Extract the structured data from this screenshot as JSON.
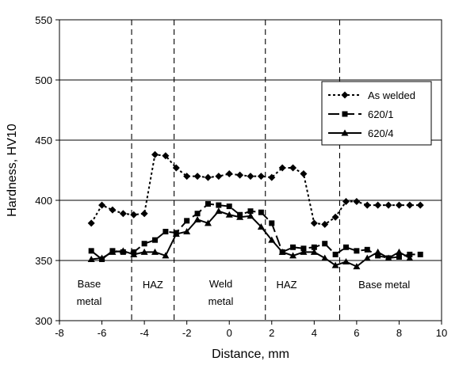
{
  "chart_data": {
    "type": "line",
    "xlabel": "Distance, mm",
    "ylabel": "Hardness, HV10",
    "xlim": [
      -8,
      10
    ],
    "ylim": [
      300,
      550
    ],
    "xticks": [
      -8,
      -6,
      -4,
      -2,
      0,
      2,
      4,
      6,
      8,
      10
    ],
    "yticks": [
      300,
      350,
      400,
      450,
      500,
      550
    ],
    "grid": "horizontal",
    "legend_position": "top-right",
    "zone_boundaries": [
      -4.6,
      -2.6,
      1.7,
      5.2
    ],
    "regions": [
      {
        "lines": [
          "Base",
          "metal"
        ],
        "x": -6.6
      },
      {
        "lines": [
          "HAZ"
        ],
        "x": -3.6
      },
      {
        "lines": [
          "Weld",
          "metal"
        ],
        "x": -0.4
      },
      {
        "lines": [
          "HAZ"
        ],
        "x": 2.7
      },
      {
        "lines": [
          "Base metal"
        ],
        "x": 7.3
      }
    ],
    "series": [
      {
        "name": "As welded",
        "style": "dotted",
        "marker": "diamond",
        "x": [
          -6.5,
          -6.0,
          -5.5,
          -5.0,
          -4.5,
          -4.0,
          -3.5,
          -3.0,
          -2.5,
          -2.0,
          -1.5,
          -1.0,
          -0.5,
          0.0,
          0.5,
          1.0,
          1.5,
          2.0,
          2.5,
          3.0,
          3.5,
          4.0,
          4.5,
          5.0,
          5.5,
          6.0,
          6.5,
          7.0,
          7.5,
          8.0,
          8.5,
          9.0
        ],
        "y": [
          381,
          396,
          392,
          389,
          388,
          389,
          438,
          437,
          427,
          420,
          420,
          419,
          420,
          422,
          421,
          420,
          420,
          419,
          427,
          427,
          422,
          381,
          380,
          386,
          399,
          399,
          396,
          396,
          396,
          396,
          396,
          396
        ]
      },
      {
        "name": "620/1",
        "style": "long-dash",
        "marker": "square",
        "x": [
          -6.5,
          -6.0,
          -5.5,
          -5.0,
          -4.5,
          -4.0,
          -3.5,
          -3.0,
          -2.5,
          -2.0,
          -1.5,
          -1.0,
          -0.5,
          0.0,
          0.5,
          1.0,
          1.5,
          2.0,
          2.5,
          3.0,
          3.5,
          4.0,
          4.5,
          5.0,
          5.5,
          6.0,
          6.5,
          7.0,
          7.5,
          8.0,
          8.5,
          9.0
        ],
        "y": [
          358,
          351,
          358,
          357,
          357,
          364,
          367,
          374,
          373,
          383,
          389,
          397,
          396,
          395,
          388,
          391,
          390,
          381,
          357,
          361,
          360,
          361,
          364,
          355,
          361,
          358,
          359,
          354,
          352,
          353,
          355,
          355
        ]
      },
      {
        "name": "620/4",
        "style": "solid",
        "marker": "triangle",
        "x": [
          -6.5,
          -6.0,
          -5.5,
          -5.0,
          -4.5,
          -4.0,
          -3.5,
          -3.0,
          -2.5,
          -2.0,
          -1.5,
          -1.0,
          -0.5,
          0.0,
          0.5,
          1.0,
          1.5,
          2.0,
          2.5,
          3.0,
          3.5,
          4.0,
          4.5,
          5.0,
          5.5,
          6.0,
          6.5,
          7.0,
          7.5,
          8.0,
          8.5
        ],
        "y": [
          351,
          352,
          357,
          358,
          355,
          357,
          357,
          354,
          372,
          374,
          384,
          381,
          391,
          388,
          386,
          387,
          378,
          367,
          357,
          354,
          357,
          357,
          352,
          346,
          349,
          345,
          352,
          357,
          352,
          357,
          352
        ]
      }
    ]
  }
}
